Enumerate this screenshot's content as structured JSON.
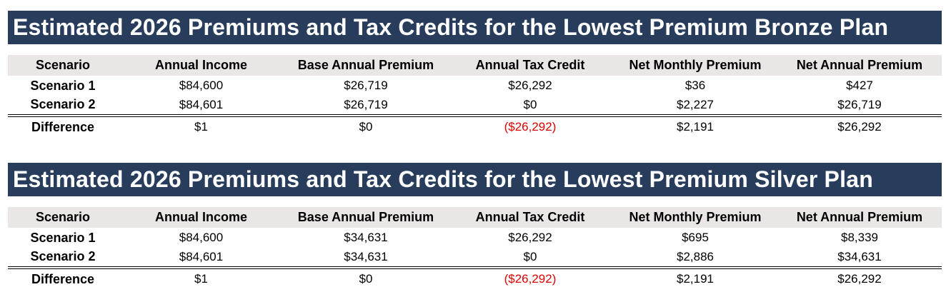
{
  "colors": {
    "title_bar_bg": "#283d5c",
    "header_row_bg": "#eae6e6",
    "negative_text": "#e00000"
  },
  "columns": [
    "Scenario",
    "Annual Income",
    "Base Annual Premium",
    "Annual Tax Credit",
    "Net Monthly Premium",
    "Net Annual Premium"
  ],
  "tables": [
    {
      "title": "Estimated 2026 Premiums and Tax Credits for the Lowest Premium Bronze Plan",
      "rows": [
        [
          "Scenario 1",
          "$84,600",
          "$26,719",
          "$26,292",
          "$36",
          "$427"
        ],
        [
          "Scenario 2",
          "$84,601",
          "$26,719",
          "$0",
          "$2,227",
          "$26,719"
        ],
        [
          "Difference",
          "$1",
          "$0",
          "($26,292)",
          "$2,191",
          "$26,292"
        ]
      ]
    },
    {
      "title": "Estimated 2026 Premiums and Tax Credits for the Lowest Premium Silver Plan",
      "rows": [
        [
          "Scenario 1",
          "$84,600",
          "$34,631",
          "$26,292",
          "$695",
          "$8,339"
        ],
        [
          "Scenario 2",
          "$84,601",
          "$34,631",
          "$0",
          "$2,886",
          "$34,631"
        ],
        [
          "Difference",
          "$1",
          "$0",
          "($26,292)",
          "$2,191",
          "$26,292"
        ]
      ]
    }
  ]
}
